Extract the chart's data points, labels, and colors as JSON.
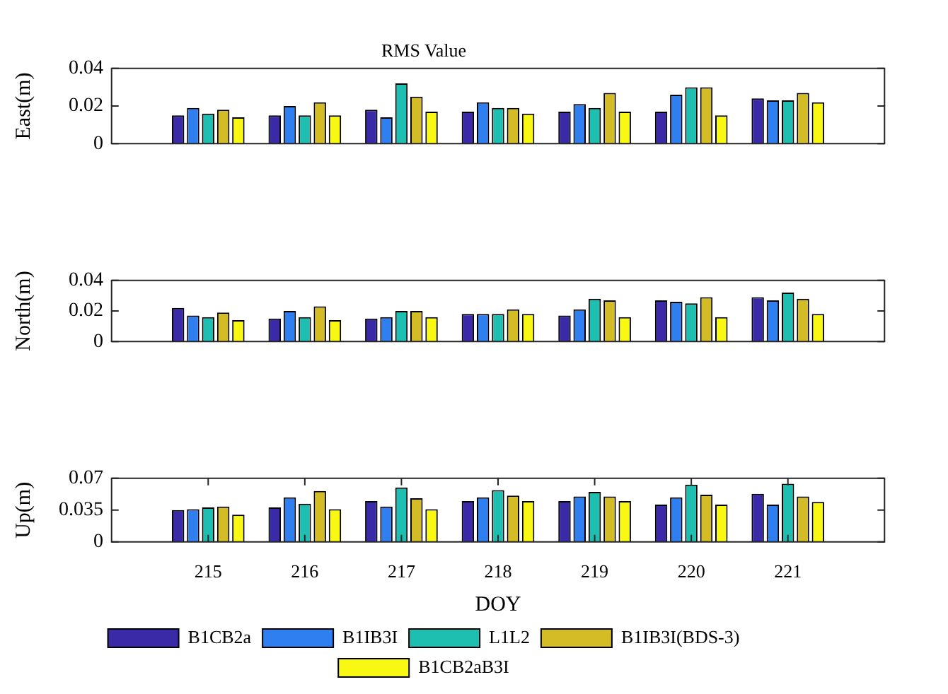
{
  "chart_data": [
    {
      "type": "bar",
      "title": "RMS Value",
      "ylabel": "East(m)",
      "categories": [
        "215",
        "216",
        "217",
        "218",
        "219",
        "220",
        "221"
      ],
      "ylim": [
        0,
        0.04
      ],
      "yticks": [
        0,
        0.02,
        0.04
      ],
      "tick_labels": "y",
      "legend": false,
      "series": [
        {
          "color": "#3a2aa8",
          "values": [
            0.015,
            0.015,
            0.018,
            0.017,
            0.017,
            0.017,
            0.024
          ]
        },
        {
          "color": "#2f7ff0",
          "values": [
            0.019,
            0.02,
            0.014,
            0.022,
            0.021,
            0.026,
            0.023
          ]
        },
        {
          "color": "#1ebfb0",
          "values": [
            0.016,
            0.015,
            0.032,
            0.019,
            0.019,
            0.03,
            0.023
          ]
        },
        {
          "color": "#d4bc26",
          "values": [
            0.018,
            0.022,
            0.025,
            0.019,
            0.027,
            0.03,
            0.027
          ]
        },
        {
          "color": "#f8f813",
          "values": [
            0.014,
            0.015,
            0.017,
            0.016,
            0.017,
            0.015,
            0.022
          ]
        }
      ]
    },
    {
      "type": "bar",
      "ylabel": "North(m)",
      "categories": [
        "215",
        "216",
        "217",
        "218",
        "219",
        "220",
        "221"
      ],
      "ylim": [
        0,
        0.04
      ],
      "yticks": [
        0,
        0.02,
        0.04
      ],
      "tick_labels": "y",
      "legend": false,
      "series": [
        {
          "color": "#3a2aa8",
          "values": [
            0.022,
            0.015,
            0.015,
            0.018,
            0.017,
            0.027,
            0.029
          ]
        },
        {
          "color": "#2f7ff0",
          "values": [
            0.017,
            0.02,
            0.016,
            0.018,
            0.021,
            0.026,
            0.027
          ]
        },
        {
          "color": "#1ebfb0",
          "values": [
            0.016,
            0.016,
            0.02,
            0.018,
            0.028,
            0.025,
            0.032
          ]
        },
        {
          "color": "#d4bc26",
          "values": [
            0.019,
            0.023,
            0.02,
            0.021,
            0.027,
            0.029,
            0.028
          ]
        },
        {
          "color": "#f8f813",
          "values": [
            0.014,
            0.014,
            0.016,
            0.018,
            0.016,
            0.016,
            0.018
          ]
        }
      ]
    },
    {
      "type": "bar",
      "ylabel": "Up(m)",
      "xlabel": "DOY",
      "categories": [
        "215",
        "216",
        "217",
        "218",
        "219",
        "220",
        "221"
      ],
      "ylim": [
        0,
        0.07
      ],
      "yticks": [
        0,
        0.035,
        0.07
      ],
      "legend": "bottom",
      "series": [
        {
          "name": "B1CB2a",
          "color": "#3a2aa8",
          "values": [
            0.035,
            0.038,
            0.045,
            0.045,
            0.045,
            0.041,
            0.053
          ]
        },
        {
          "name": "B1IB3I",
          "color": "#2f7ff0",
          "values": [
            0.036,
            0.049,
            0.039,
            0.049,
            0.05,
            0.049,
            0.041
          ]
        },
        {
          "name": "L1L2",
          "color": "#1ebfb0",
          "values": [
            0.038,
            0.042,
            0.06,
            0.057,
            0.055,
            0.063,
            0.064
          ]
        },
        {
          "name": "B1IB3I(BDS-3)",
          "color": "#d4bc26",
          "values": [
            0.039,
            0.056,
            0.048,
            0.051,
            0.05,
            0.052,
            0.05
          ]
        },
        {
          "name": "B1CB2aB3I",
          "color": "#f8f813",
          "values": [
            0.03,
            0.036,
            0.036,
            0.045,
            0.045,
            0.041,
            0.044
          ]
        }
      ]
    }
  ]
}
